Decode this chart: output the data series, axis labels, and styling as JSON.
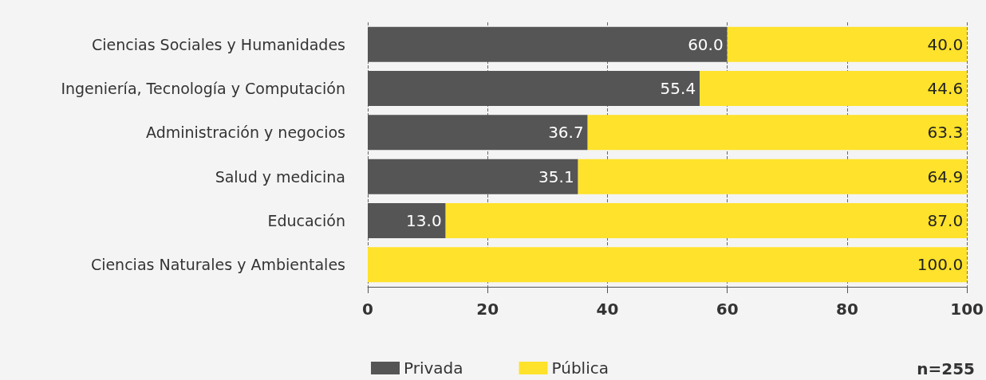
{
  "chart_data": {
    "type": "bar",
    "orientation": "horizontal",
    "stacked": true,
    "categories": [
      "Ciencias Sociales y Humanidades",
      "Ingeniería, Tecnología y Computación",
      "Administración y negocios",
      "Salud y medicina",
      "Educación",
      "Ciencias Naturales y Ambientales"
    ],
    "series": [
      {
        "name": "Privada",
        "color": "#555555",
        "values": [
          60.0,
          55.4,
          36.7,
          35.1,
          13.0,
          0
        ],
        "value_labels": [
          "60.0",
          "55.4",
          "36.7",
          "35.1",
          "13.0",
          null
        ]
      },
      {
        "name": "Pública",
        "color": "#ffe22b",
        "values": [
          40.0,
          44.6,
          63.3,
          64.9,
          87.0,
          100.0
        ],
        "value_labels": [
          "40.0",
          "44.6",
          "63.3",
          "64.9",
          "87.0",
          "100.0"
        ]
      }
    ],
    "xlim": [
      0,
      100
    ],
    "xticks": [
      0,
      20,
      40,
      60,
      80,
      100
    ],
    "grid": "x",
    "legend": "bottom",
    "annotations": [
      "n=255"
    ]
  }
}
